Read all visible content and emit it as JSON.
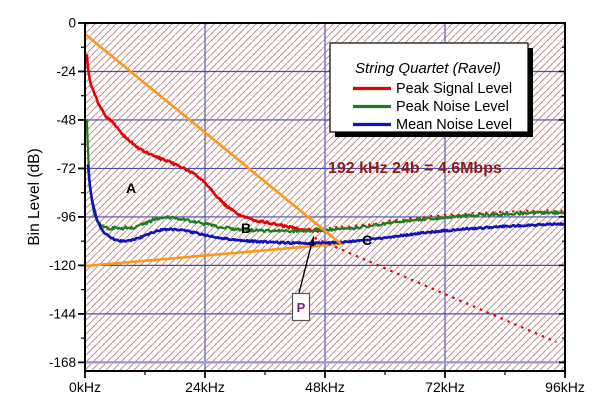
{
  "annotation": {
    "text": "192 kHz 24b = 4.6Mbps",
    "color": "#8e1b15"
  },
  "chart_data": {
    "type": "line",
    "title": "String Quartet (Ravel)",
    "xlabel": "",
    "ylabel": "Bin Level (dB)",
    "x_axis": {
      "min": 0,
      "max": 96,
      "major_step": 24,
      "minor_step": 12,
      "unit": "kHz",
      "ticks": [
        {
          "value": 0,
          "label": "0kHz"
        },
        {
          "value": 24,
          "label": "24kHz"
        },
        {
          "value": 48,
          "label": "48kHz"
        },
        {
          "value": 72,
          "label": "72kHz"
        },
        {
          "value": 96,
          "label": "96kHz"
        }
      ]
    },
    "y_axis": {
      "min": -168,
      "max": 0,
      "major_step": 24,
      "minor_step": 12,
      "ticks": [
        0,
        -24,
        -48,
        -72,
        -96,
        -120,
        -144,
        -168
      ]
    },
    "grid": {
      "vertical_lines_khz": [
        24,
        48,
        72
      ],
      "horizontal_lines_db": [
        -24,
        -48,
        -72,
        -96,
        -120,
        -144
      ],
      "baseline_db": -168,
      "h_color": "#4b4bb0",
      "v_color": "#7d7dca",
      "baseline_color": "#9a9ada"
    },
    "hatch": {
      "color": "#c18f8f",
      "spacing": 7,
      "direction": "/"
    },
    "legend": {
      "title": "String Quartet (Ravel)",
      "position": "top-right",
      "entries": [
        {
          "label": "Peak Signal Level",
          "color": "#e60000"
        },
        {
          "label": "Peak Noise Level",
          "color": "#1e7d1e"
        },
        {
          "label": "Mean Noise Level",
          "color": "#1212b8"
        }
      ]
    },
    "series": [
      {
        "name": "Peak Signal Level",
        "color": "#e60000",
        "style": "solid",
        "width": 2.6,
        "jitter": 1.1,
        "points": [
          [
            0.35,
            -15
          ],
          [
            0.45,
            -19
          ],
          [
            0.6,
            -23
          ],
          [
            0.8,
            -26
          ],
          [
            1.0,
            -28.5
          ],
          [
            1.3,
            -31
          ],
          [
            1.7,
            -34
          ],
          [
            2.1,
            -36.5
          ],
          [
            2.5,
            -39
          ],
          [
            3.0,
            -41.5
          ],
          [
            3.5,
            -43.5
          ],
          [
            4.0,
            -45.5
          ],
          [
            4.5,
            -47
          ],
          [
            5.0,
            -48
          ],
          [
            5.5,
            -49
          ],
          [
            6.0,
            -50.5
          ],
          [
            6.5,
            -52
          ],
          [
            7.0,
            -53.5
          ],
          [
            7.5,
            -55
          ],
          [
            8.0,
            -56.5
          ],
          [
            8.5,
            -57.5
          ],
          [
            9.0,
            -58.5
          ],
          [
            9.5,
            -59.5
          ],
          [
            10.0,
            -60.5
          ],
          [
            10.5,
            -61.5
          ],
          [
            11.0,
            -62.5
          ],
          [
            11.5,
            -63.2
          ],
          [
            12.0,
            -63.8
          ],
          [
            12.5,
            -64.4
          ],
          [
            13.0,
            -65
          ],
          [
            14,
            -66
          ],
          [
            15,
            -67
          ],
          [
            16,
            -68
          ],
          [
            17,
            -69
          ],
          [
            18,
            -70
          ],
          [
            19,
            -71
          ],
          [
            20,
            -72.2
          ],
          [
            21,
            -73.6
          ],
          [
            22,
            -75
          ],
          [
            23,
            -76.8
          ],
          [
            24,
            -79
          ],
          [
            25,
            -81.5
          ],
          [
            26,
            -84.5
          ],
          [
            27,
            -87.5
          ],
          [
            28,
            -90
          ],
          [
            29,
            -92
          ],
          [
            30,
            -93.5
          ],
          [
            31,
            -95
          ],
          [
            32,
            -96.2
          ],
          [
            33,
            -97
          ],
          [
            34,
            -97.6
          ],
          [
            35,
            -98.1
          ],
          [
            36,
            -98.6
          ],
          [
            37,
            -99.1
          ],
          [
            38,
            -99.6
          ],
          [
            39,
            -100.1
          ],
          [
            40,
            -100.6
          ],
          [
            41,
            -101.1
          ],
          [
            42,
            -101.5
          ],
          [
            43,
            -101.9
          ],
          [
            44,
            -102.2
          ],
          [
            45,
            -102.4
          ],
          [
            46,
            -102.6
          ],
          [
            47,
            -102.8
          ]
        ]
      },
      {
        "name": "Peak Noise Level",
        "color": "#1e7d1e",
        "style": "solid",
        "width": 2.2,
        "jitter": 1.4,
        "points": [
          [
            0.35,
            -47
          ],
          [
            0.5,
            -58
          ],
          [
            0.7,
            -70
          ],
          [
            0.95,
            -80
          ],
          [
            1.3,
            -88
          ],
          [
            1.7,
            -93
          ],
          [
            2.1,
            -96.5
          ],
          [
            2.6,
            -98.8
          ],
          [
            3.2,
            -100.3
          ],
          [
            4,
            -101.3
          ],
          [
            5,
            -101.8
          ],
          [
            6,
            -101.2
          ],
          [
            7,
            -102.2
          ],
          [
            8,
            -101.2
          ],
          [
            9,
            -101.9
          ],
          [
            10,
            -101.3
          ],
          [
            11,
            -100.4
          ],
          [
            12,
            -99.4
          ],
          [
            13,
            -98.2
          ],
          [
            14,
            -97.1
          ],
          [
            15,
            -96.4
          ],
          [
            16,
            -96.1
          ],
          [
            17,
            -96.2
          ],
          [
            18,
            -96.5
          ],
          [
            19,
            -96.9
          ],
          [
            20,
            -97.4
          ],
          [
            21,
            -97.9
          ],
          [
            22,
            -98.4
          ],
          [
            23,
            -99
          ],
          [
            24,
            -99.5
          ],
          [
            25,
            -100
          ],
          [
            26,
            -100.5
          ],
          [
            27,
            -101
          ],
          [
            28,
            -101.4
          ],
          [
            29,
            -101.7
          ],
          [
            30,
            -102
          ],
          [
            32,
            -102.4
          ],
          [
            34,
            -102.7
          ],
          [
            36,
            -102.9
          ],
          [
            38,
            -103
          ],
          [
            40,
            -103
          ],
          [
            42,
            -103
          ],
          [
            44,
            -102.9
          ],
          [
            46,
            -102.7
          ],
          [
            48,
            -102.6
          ],
          [
            50,
            -102.4
          ],
          [
            52,
            -102
          ],
          [
            54,
            -101.5
          ],
          [
            56,
            -100.9
          ],
          [
            58,
            -100.2
          ],
          [
            60,
            -99.5
          ],
          [
            62,
            -98.8
          ],
          [
            64,
            -98.1
          ],
          [
            66,
            -97.5
          ],
          [
            68,
            -97
          ],
          [
            70,
            -96.6
          ],
          [
            72,
            -96.2
          ],
          [
            74,
            -95.9
          ],
          [
            76,
            -95.6
          ],
          [
            78,
            -95.3
          ],
          [
            80,
            -95
          ],
          [
            82,
            -94.8
          ],
          [
            84,
            -94.6
          ],
          [
            86,
            -94.4
          ],
          [
            88,
            -94.2
          ],
          [
            90,
            -94.1
          ],
          [
            92,
            -93.9
          ],
          [
            94,
            -93.8
          ],
          [
            96,
            -93.7
          ]
        ]
      },
      {
        "name": "Mean Noise Level",
        "color": "#1212b8",
        "style": "solid",
        "width": 2.6,
        "jitter": 0.9,
        "points": [
          [
            0.6,
            -70
          ],
          [
            0.8,
            -76
          ],
          [
            1.0,
            -81
          ],
          [
            1.3,
            -86
          ],
          [
            1.7,
            -91
          ],
          [
            2.1,
            -95
          ],
          [
            2.6,
            -98.5
          ],
          [
            3.2,
            -101.5
          ],
          [
            4,
            -104
          ],
          [
            5,
            -106
          ],
          [
            6,
            -107.2
          ],
          [
            7,
            -107.8
          ],
          [
            8,
            -107.9
          ],
          [
            9,
            -107.6
          ],
          [
            10,
            -107
          ],
          [
            11,
            -106.2
          ],
          [
            12,
            -105.2
          ],
          [
            13,
            -104.2
          ],
          [
            14,
            -103.3
          ],
          [
            15,
            -102.6
          ],
          [
            16,
            -102.2
          ],
          [
            17,
            -102.1
          ],
          [
            18,
            -102.2
          ],
          [
            19,
            -102.5
          ],
          [
            20,
            -102.9
          ],
          [
            21,
            -103.4
          ],
          [
            22,
            -103.9
          ],
          [
            23,
            -104.4
          ],
          [
            24,
            -104.9
          ],
          [
            25,
            -105.4
          ],
          [
            26,
            -105.9
          ],
          [
            27,
            -106.3
          ],
          [
            28,
            -106.7
          ],
          [
            29,
            -107
          ],
          [
            30,
            -107.3
          ],
          [
            32,
            -107.8
          ],
          [
            34,
            -108.1
          ],
          [
            36,
            -108.4
          ],
          [
            38,
            -108.6
          ],
          [
            40,
            -108.8
          ],
          [
            42,
            -108.9
          ],
          [
            44,
            -109
          ],
          [
            46,
            -109
          ],
          [
            48,
            -108.9
          ],
          [
            50,
            -108.7
          ],
          [
            52,
            -108.4
          ],
          [
            54,
            -108
          ],
          [
            56,
            -107.5
          ],
          [
            58,
            -107
          ],
          [
            60,
            -106.4
          ],
          [
            62,
            -105.7
          ],
          [
            64,
            -105
          ],
          [
            66,
            -104.4
          ],
          [
            68,
            -103.8
          ],
          [
            70,
            -103.3
          ],
          [
            72,
            -102.8
          ],
          [
            74,
            -102.4
          ],
          [
            76,
            -102
          ],
          [
            78,
            -101.6
          ],
          [
            80,
            -101.3
          ],
          [
            82,
            -101
          ],
          [
            84,
            -100.7
          ],
          [
            86,
            -100.4
          ],
          [
            88,
            -100.2
          ],
          [
            90,
            -100
          ],
          [
            92,
            -99.8
          ],
          [
            94,
            -99.6
          ],
          [
            96,
            -99.4
          ]
        ]
      }
    ],
    "signal_follows_noise_dotted": {
      "color": "#e60000",
      "from_khz": 47.5,
      "to_khz": 96,
      "offset_db": 1.0
    },
    "guide_lines": [
      {
        "name": "signal-slope",
        "color": "#ff9715",
        "width": 2.6,
        "over_curves": true,
        "points": [
          [
            0,
            -5.5
          ],
          [
            51,
            -109
          ]
        ]
      },
      {
        "name": "noise-slope",
        "color": "#ff9715",
        "width": 2.6,
        "over_curves": false,
        "points": [
          [
            0,
            -120.3
          ],
          [
            51.4,
            -109.2
          ]
        ]
      }
    ],
    "projection_line": {
      "name": "extrapolated-noise-floor",
      "color": "#e60000",
      "style": "dotted",
      "width": 2.2,
      "points": [
        [
          45.9,
          -106.4
        ],
        [
          94.3,
          -158
        ]
      ]
    },
    "point_labels": [
      {
        "text": "A",
        "khz": 9.2,
        "db": -82
      },
      {
        "text": "B",
        "khz": 32.2,
        "db": -101.5
      },
      {
        "text": "C",
        "khz": 56.4,
        "db": -107.4
      }
    ],
    "callout": {
      "label": "P",
      "color": "#7b2080",
      "box_khz": 43.2,
      "box_db": -141.5,
      "tip_khz": 45.8,
      "tip_db": -105
    }
  }
}
